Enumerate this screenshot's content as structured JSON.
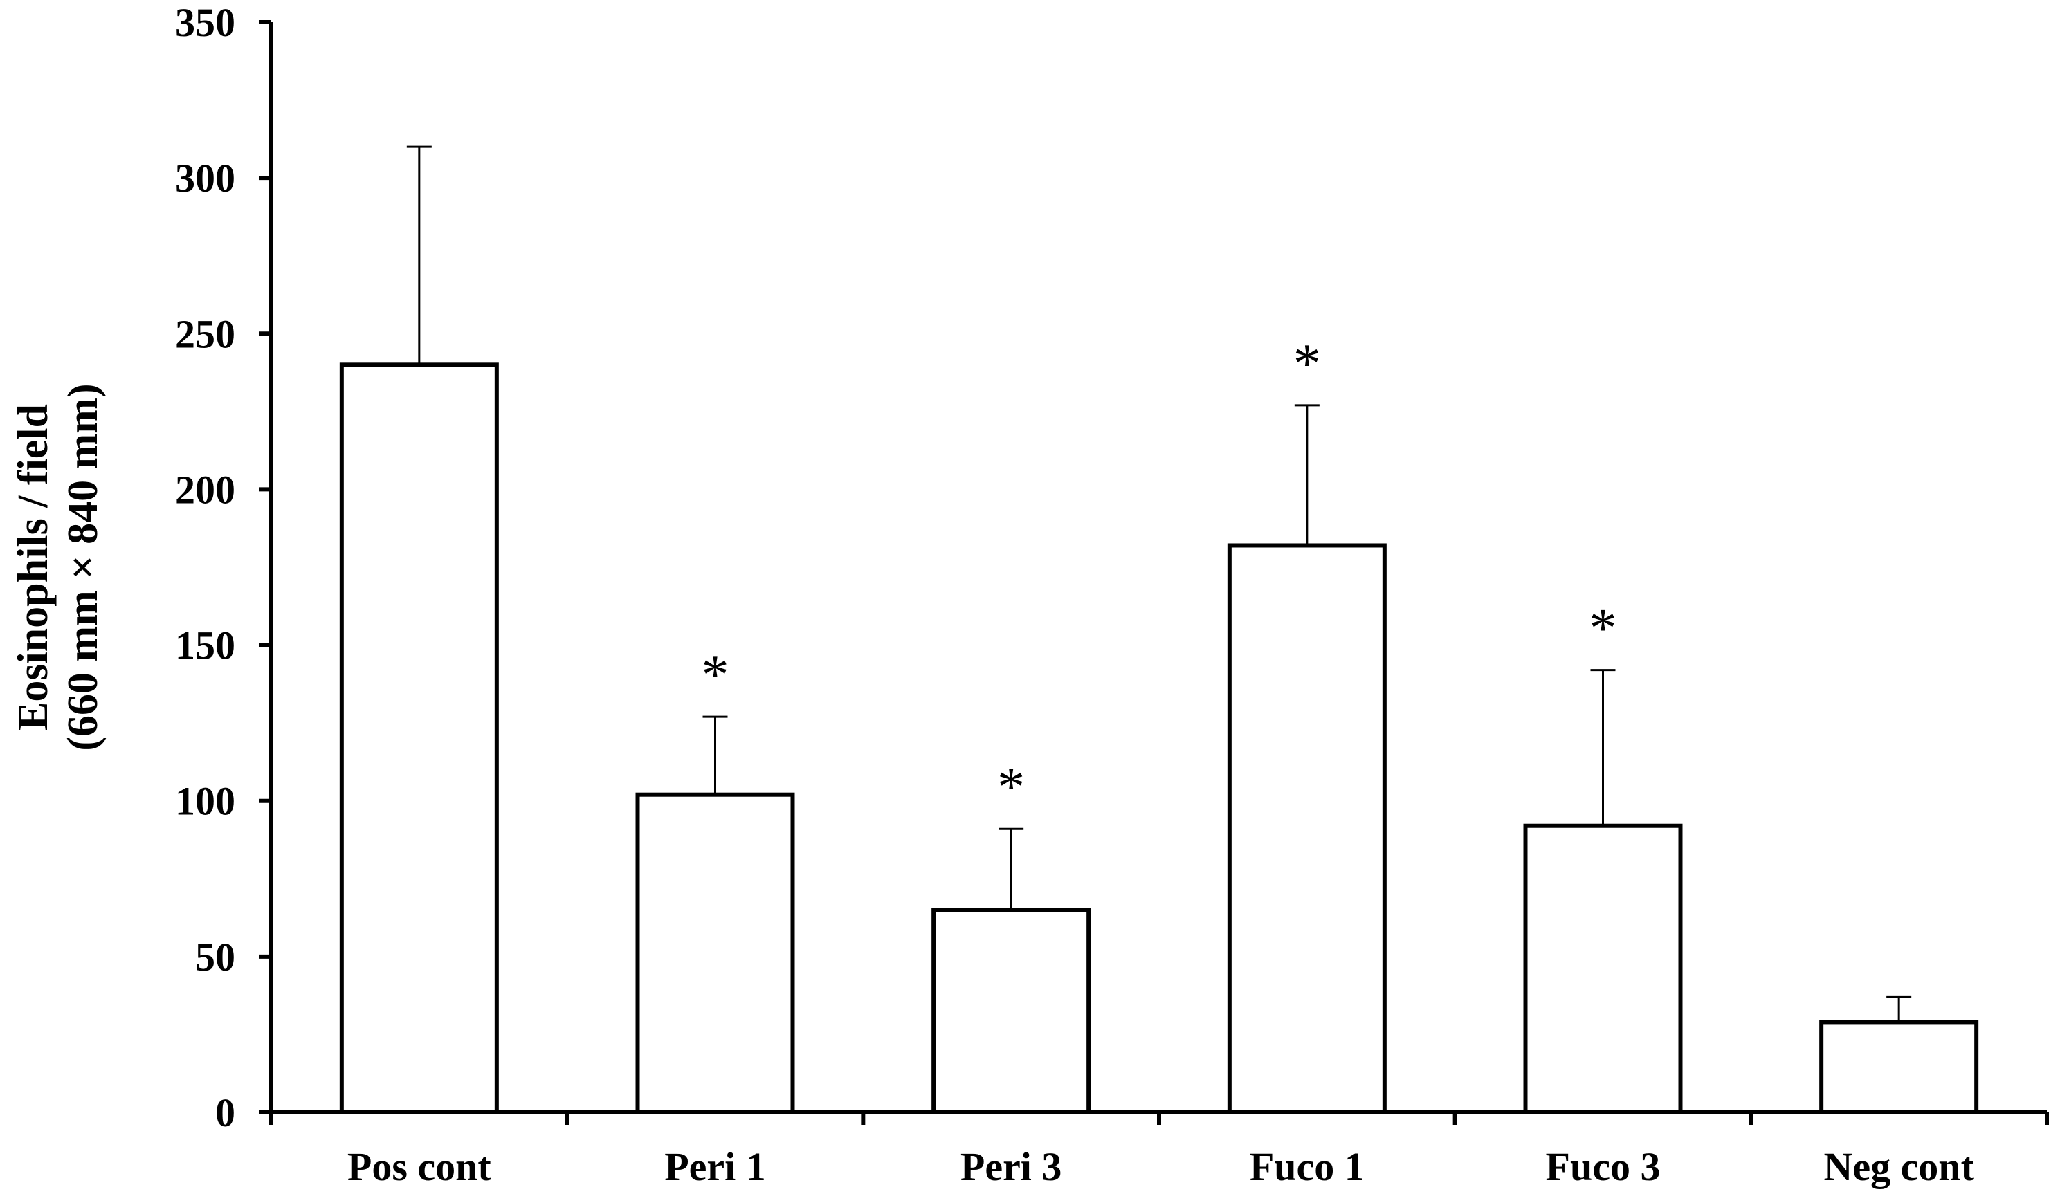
{
  "chart_data": {
    "type": "bar",
    "categories": [
      "Pos cont",
      "Peri 1",
      "Peri 3",
      "Fuco 1",
      "Fuco 3",
      "Neg cont"
    ],
    "values": [
      240,
      102,
      65,
      182,
      92,
      29
    ],
    "error_upper": [
      310,
      127,
      91,
      227,
      142,
      37
    ],
    "significance": [
      "",
      "*",
      "*",
      "*",
      "*",
      ""
    ],
    "ylabel_line1": "Eosinophils / field",
    "ylabel_line2": "(660 mm × 840 mm)",
    "xlabel": "",
    "ylim": [
      0,
      350
    ],
    "yticks": [
      0,
      50,
      100,
      150,
      200,
      250,
      300,
      350
    ],
    "grid": false,
    "legend": "none",
    "bar_fill": "#ffffff",
    "bar_stroke": "#000000"
  }
}
